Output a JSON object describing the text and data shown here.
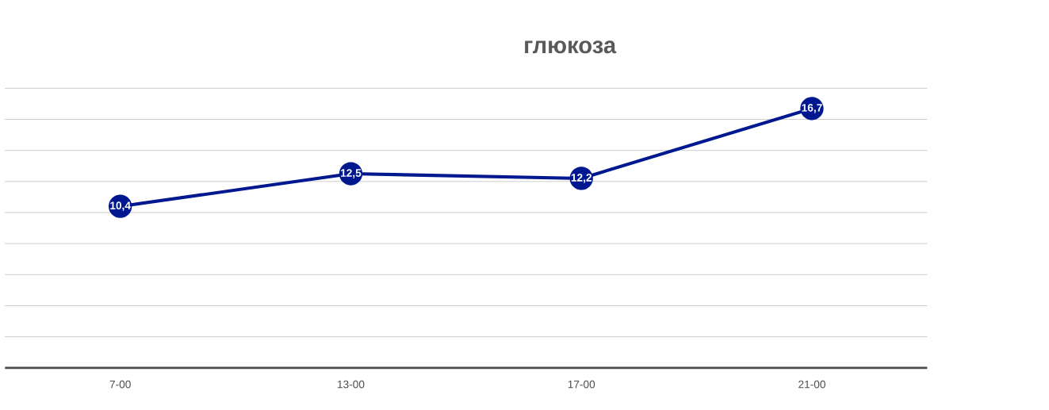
{
  "chart_data": {
    "type": "line",
    "title": "глюкоза",
    "categories": [
      "7-00",
      "13-00",
      "17-00",
      "21-00"
    ],
    "values": [
      10.4,
      12.5,
      12.2,
      16.7
    ],
    "value_labels": [
      "10,4",
      "12,5",
      "12,2",
      "16,7"
    ],
    "color": "#00188f",
    "grid": "y",
    "marker": "circle",
    "tick_labels": "x"
  }
}
